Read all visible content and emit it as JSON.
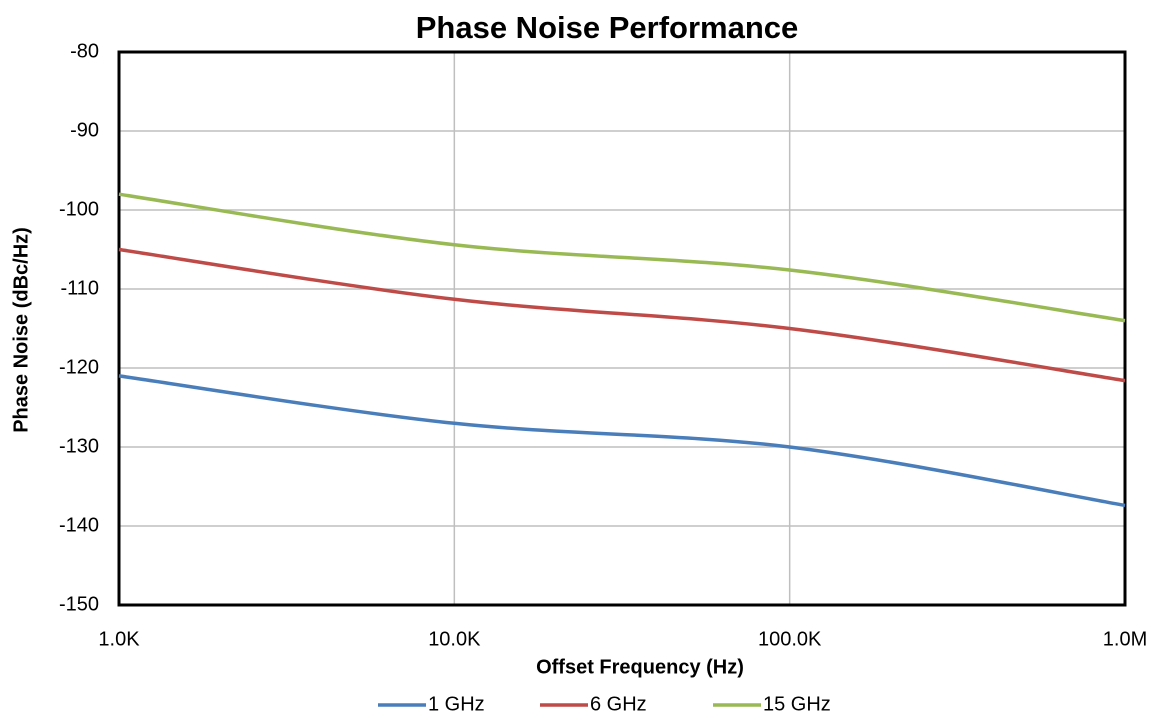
{
  "chart_data": {
    "type": "line",
    "title": "Phase Noise Performance",
    "x_label": "Offset Frequency (Hz)",
    "y_label": "Phase Noise (dBc/Hz)",
    "x": [
      1000,
      10000,
      100000,
      1000000
    ],
    "series": [
      {
        "name": "1 GHz",
        "color": "#4a7ebb",
        "values": [
          -121,
          -127,
          -130,
          -137.4
        ]
      },
      {
        "name": "6 GHz",
        "color": "#be4b48",
        "values": [
          -105,
          -111.3,
          -115,
          -121.6
        ]
      },
      {
        "name": "15 GHz",
        "color": "#98b954",
        "values": [
          -98,
          -104.4,
          -107.6,
          -114
        ]
      }
    ],
    "xlim": [
      1000,
      1000000
    ],
    "x_log": true,
    "xticks": [
      {
        "value": 1000,
        "label": "1.0K"
      },
      {
        "value": 10000,
        "label": "10.0K"
      },
      {
        "value": 100000,
        "label": "100.0K"
      },
      {
        "value": 1000000,
        "label": "1.0M"
      }
    ],
    "ylim": [
      -150,
      -80
    ],
    "yticks": [
      -150,
      -140,
      -130,
      -120,
      -110,
      -100,
      -90,
      -80
    ],
    "grid": true,
    "smooth": true,
    "legend": "bottom"
  }
}
